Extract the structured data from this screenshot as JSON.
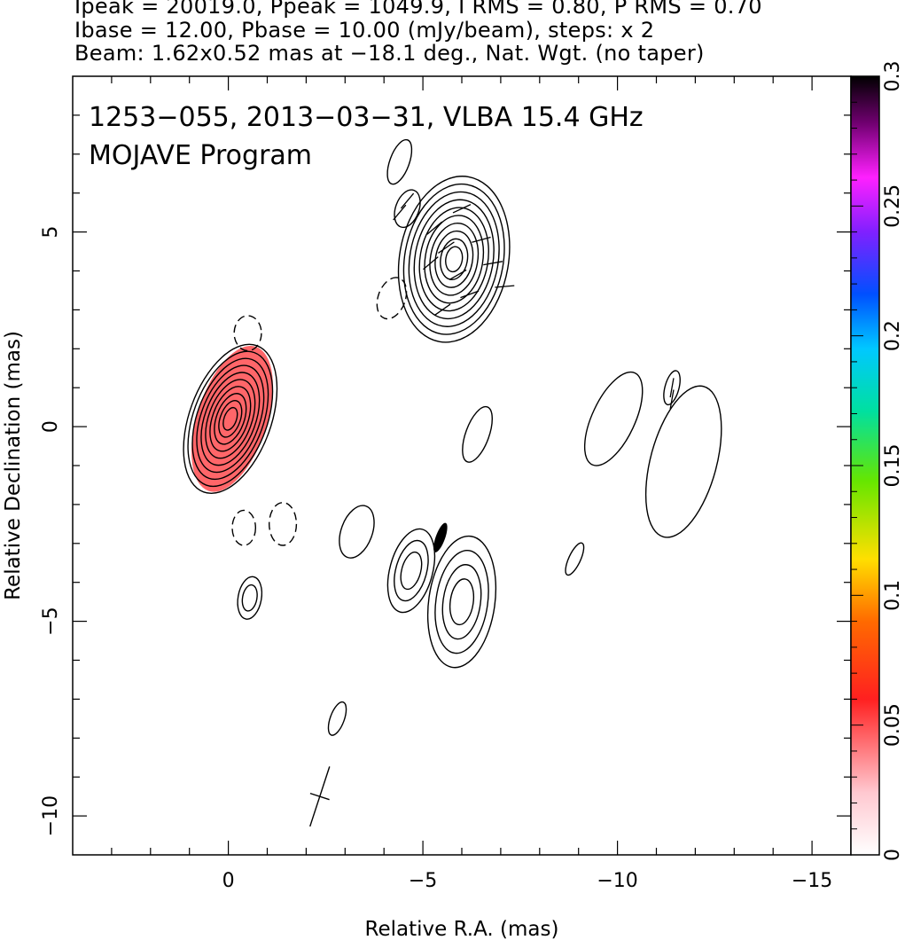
{
  "header": {
    "line1": "Ipeak = 20019.0, Ppeak = 1049.9, I RMS = 0.80, P RMS = 0.70",
    "line2": "Ibase = 12.00, Pbase = 10.00 (mJy/beam), steps: x 2",
    "line3": "Beam: 1.62x0.52 mas at −18.1 deg., Nat. Wgt. (no taper)"
  },
  "chart_data": {
    "type": "heatmap",
    "title": "1253−055, 2013−03−31, VLBA 15.4 GHz",
    "subtitle": "MOJAVE Program",
    "xlabel": "Relative R.A. (mas)",
    "ylabel": "Relative Declination (mas)",
    "xlim": [
      4,
      -16
    ],
    "ylim": [
      -11,
      9
    ],
    "xticks": [
      {
        "value": 0,
        "label": "0"
      },
      {
        "value": -5,
        "label": "−5"
      },
      {
        "value": -10,
        "label": "−10"
      },
      {
        "value": -15,
        "label": "−15"
      }
    ],
    "yticks": [
      {
        "value": 5,
        "label": "5"
      },
      {
        "value": 0,
        "label": "0"
      },
      {
        "value": -5,
        "label": "−5"
      },
      {
        "value": -10,
        "label": "−10"
      }
    ],
    "colorbar": {
      "range": [
        0,
        0.3
      ],
      "ticks": [
        {
          "value": 0,
          "label": "0"
        },
        {
          "value": 0.05,
          "label": "0.05"
        },
        {
          "value": 0.1,
          "label": "0.1"
        },
        {
          "value": 0.15,
          "label": "0.15"
        },
        {
          "value": 0.2,
          "label": "0.2"
        },
        {
          "value": 0.25,
          "label": "0.25"
        },
        {
          "value": 0.3,
          "label": "0.3"
        }
      ]
    },
    "beam": {
      "major_mas": 1.62,
      "minor_mas": 0.52,
      "pa_deg": -18.1,
      "center": [
        -2.35,
        -9.5
      ]
    },
    "components": [
      {
        "name": "core",
        "x": -0.05,
        "y": 0.2,
        "rx": 1.05,
        "ry": 2.0,
        "rot": 20,
        "levels": 10,
        "solid": true
      },
      {
        "name": "jet-knot-north",
        "x": -5.8,
        "y": 4.3,
        "rx": 1.4,
        "ry": 2.15,
        "rot": 10,
        "levels": 10,
        "solid": true
      },
      {
        "name": "knot-south-1",
        "x": -4.7,
        "y": -3.7,
        "rx": 0.55,
        "ry": 1.1,
        "rot": 15,
        "levels": 3,
        "solid": true
      },
      {
        "name": "knot-south-2",
        "x": -6.0,
        "y": -4.5,
        "rx": 0.85,
        "ry": 1.7,
        "rot": 8,
        "levels": 4,
        "solid": true
      },
      {
        "name": "blob-west-1",
        "x": -9.9,
        "y": 0.2,
        "rx": 0.55,
        "ry": 1.3,
        "rot": 25,
        "levels": 1,
        "solid": true
      },
      {
        "name": "blob-west-2",
        "x": -11.7,
        "y": -0.9,
        "rx": 0.85,
        "ry": 2.0,
        "rot": 15,
        "levels": 1,
        "solid": true
      },
      {
        "name": "blob-mid",
        "x": -6.4,
        "y": -0.2,
        "rx": 0.3,
        "ry": 0.75,
        "rot": 20,
        "levels": 1,
        "solid": true
      },
      {
        "name": "blob-south-west",
        "x": -3.3,
        "y": -2.7,
        "rx": 0.4,
        "ry": 0.7,
        "rot": 20,
        "levels": 1,
        "solid": true
      },
      {
        "name": "blob-south-small",
        "x": -0.55,
        "y": -4.4,
        "rx": 0.3,
        "ry": 0.55,
        "rot": 10,
        "levels": 2,
        "solid": true
      },
      {
        "name": "blob-far-south",
        "x": -2.8,
        "y": -7.5,
        "rx": 0.18,
        "ry": 0.45,
        "rot": 20,
        "levels": 1,
        "solid": true
      },
      {
        "name": "blob-south-right",
        "x": -8.9,
        "y": -3.4,
        "rx": 0.15,
        "ry": 0.45,
        "rot": 25,
        "levels": 1,
        "solid": true
      },
      {
        "name": "blob-top",
        "x": -4.4,
        "y": 6.8,
        "rx": 0.25,
        "ry": 0.6,
        "rot": 20,
        "levels": 1,
        "solid": true
      },
      {
        "name": "blob-top-2",
        "x": -4.6,
        "y": 5.6,
        "rx": 0.3,
        "ry": 0.5,
        "rot": 20,
        "levels": 1,
        "solid": true
      },
      {
        "name": "blob-east-small",
        "x": -11.4,
        "y": 1.0,
        "rx": 0.18,
        "ry": 0.45,
        "rot": 15,
        "levels": 1,
        "solid": true
      },
      {
        "name": "neg-1",
        "x": -0.5,
        "y": 2.4,
        "rx": 0.35,
        "ry": 0.45,
        "rot": 0,
        "levels": 1,
        "solid": false
      },
      {
        "name": "neg-2",
        "x": -0.4,
        "y": -2.6,
        "rx": 0.3,
        "ry": 0.45,
        "rot": 0,
        "levels": 1,
        "solid": false
      },
      {
        "name": "neg-3",
        "x": -1.4,
        "y": -2.5,
        "rx": 0.35,
        "ry": 0.55,
        "rot": 0,
        "levels": 1,
        "solid": false
      },
      {
        "name": "neg-4",
        "x": -4.2,
        "y": 3.3,
        "rx": 0.35,
        "ry": 0.55,
        "rot": 20,
        "levels": 1,
        "solid": false
      }
    ],
    "fractional_polarization_patches": [
      {
        "x": -0.1,
        "y": 0.2,
        "rx": 0.9,
        "ry": 1.95,
        "rot": 18,
        "value": 0.045
      },
      {
        "x": -5.45,
        "y": -2.85,
        "rx": 0.12,
        "ry": 0.4,
        "rot": 20,
        "value": 0.3
      }
    ],
    "evpa_sticks": [
      {
        "x": -4.6,
        "y": 5.8,
        "angle": 50
      },
      {
        "x": -4.4,
        "y": 5.5,
        "angle": 50
      },
      {
        "x": -5.3,
        "y": 5.1,
        "angle": 40
      },
      {
        "x": -5.6,
        "y": 4.6,
        "angle": 35
      },
      {
        "x": -5.2,
        "y": 4.2,
        "angle": 40
      },
      {
        "x": -5.9,
        "y": 3.9,
        "angle": 30
      },
      {
        "x": -6.2,
        "y": 3.4,
        "angle": 20
      },
      {
        "x": -5.5,
        "y": 3.0,
        "angle": 35
      },
      {
        "x": -6.5,
        "y": 4.8,
        "angle": 15
      },
      {
        "x": -6.8,
        "y": 4.2,
        "angle": 10
      },
      {
        "x": -7.1,
        "y": 3.6,
        "angle": 5
      },
      {
        "x": -6.0,
        "y": 5.6,
        "angle": 25
      },
      {
        "x": -11.4,
        "y": 1.0,
        "angle": 80
      },
      {
        "x": -11.4,
        "y": 0.7,
        "angle": 80
      }
    ]
  }
}
